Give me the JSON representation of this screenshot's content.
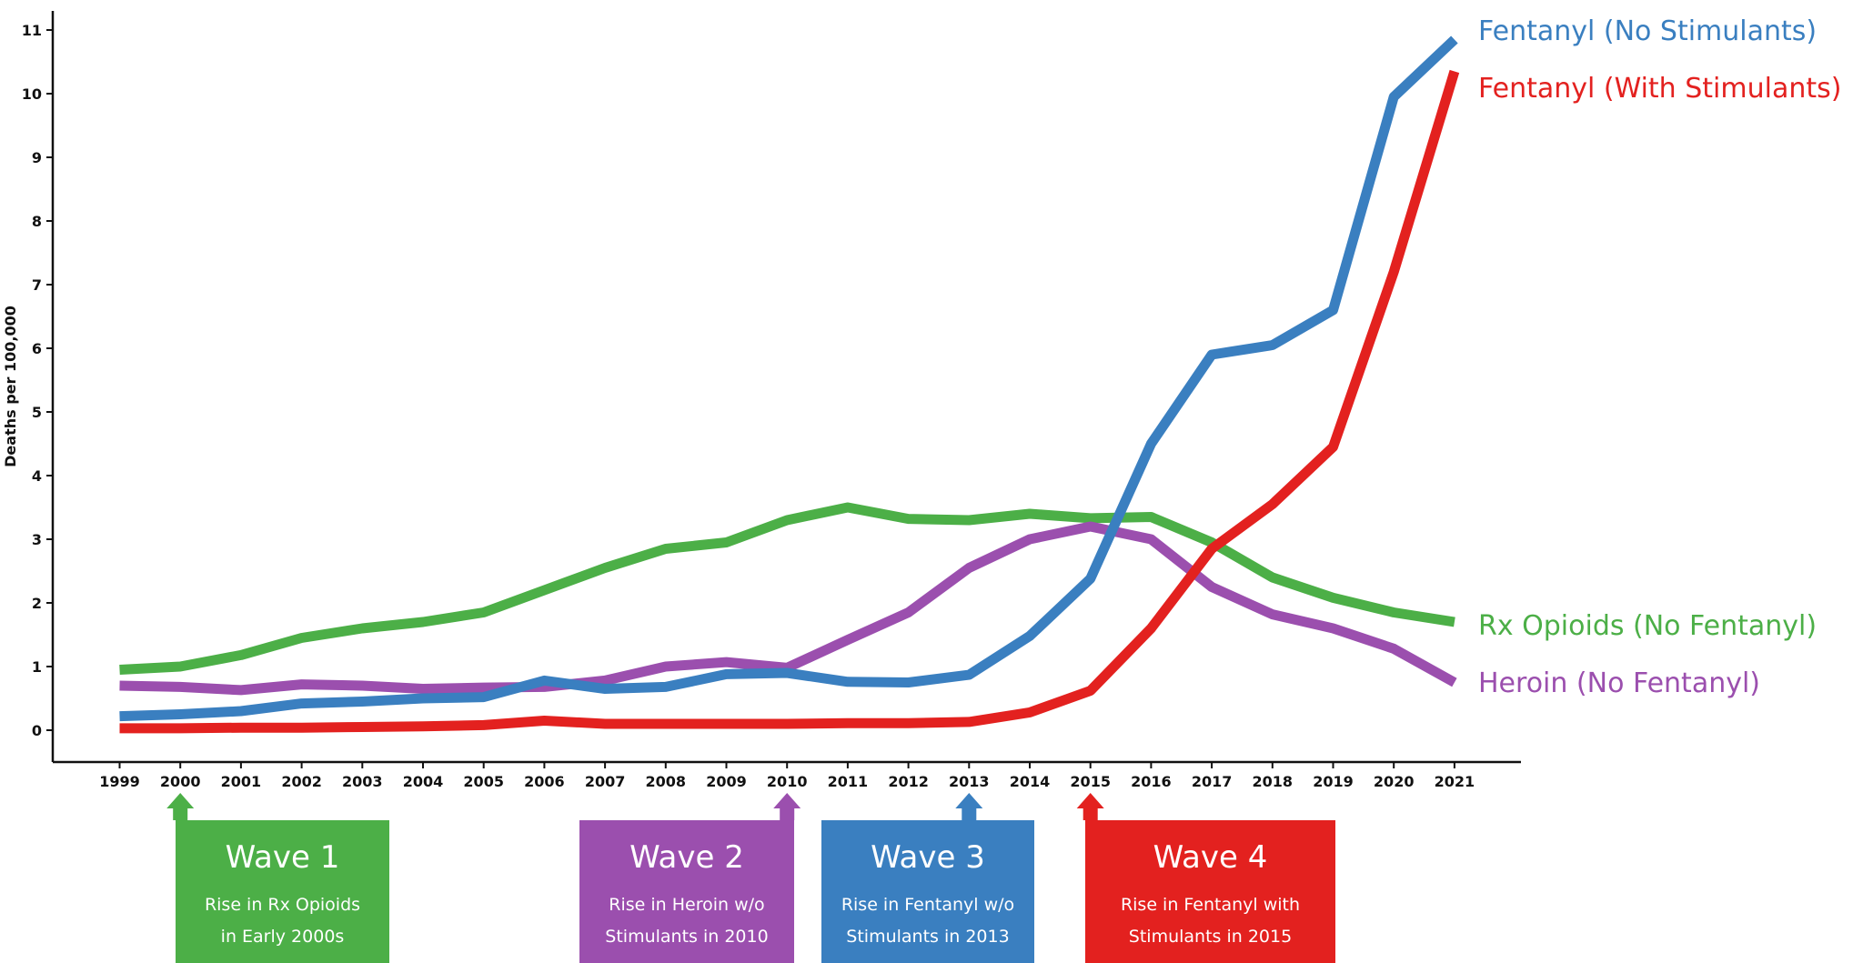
{
  "chart_data": {
    "type": "line",
    "title": "",
    "xlabel": "",
    "ylabel": "Deaths per 100,000",
    "ylim": [
      0,
      11
    ],
    "yticks": [
      "0",
      "1",
      "2",
      "3",
      "4",
      "5",
      "6",
      "7",
      "8",
      "9",
      "10",
      "11"
    ],
    "grid": false,
    "categories": [
      "1999",
      "2000",
      "2001",
      "2002",
      "2003",
      "2004",
      "2005",
      "2006",
      "2007",
      "2008",
      "2009",
      "2010",
      "2011",
      "2012",
      "2013",
      "2014",
      "2015",
      "2016",
      "2017",
      "2018",
      "2019",
      "2020",
      "2021"
    ],
    "series": [
      {
        "name": "Rx Opioids (No Fentanyl)",
        "color": "#4caf47",
        "values": [
          0.95,
          1.0,
          1.18,
          1.45,
          1.6,
          1.7,
          1.85,
          2.2,
          2.55,
          2.85,
          2.95,
          3.3,
          3.5,
          3.32,
          3.3,
          3.4,
          3.33,
          3.35,
          2.95,
          2.4,
          2.08,
          1.85,
          1.7
        ]
      },
      {
        "name": "Heroin (No Fentanyl)",
        "color": "#9b4fae",
        "values": [
          0.7,
          0.68,
          0.63,
          0.72,
          0.7,
          0.65,
          0.67,
          0.68,
          0.78,
          1.0,
          1.07,
          0.98,
          1.42,
          1.85,
          2.55,
          3.0,
          3.2,
          3.0,
          2.25,
          1.82,
          1.6,
          1.28,
          0.75
        ]
      },
      {
        "name": "Fentanyl (No Stimulants)",
        "color": "#3a7fc0",
        "values": [
          0.22,
          0.25,
          0.3,
          0.42,
          0.45,
          0.5,
          0.52,
          0.78,
          0.65,
          0.68,
          0.88,
          0.9,
          0.76,
          0.75,
          0.87,
          1.48,
          2.38,
          4.5,
          5.9,
          6.05,
          6.6,
          9.95,
          10.85
        ]
      },
      {
        "name": "Fentanyl (With Stimulants)",
        "color": "#e3211f",
        "values": [
          0.03,
          0.03,
          0.04,
          0.04,
          0.05,
          0.06,
          0.08,
          0.15,
          0.1,
          0.1,
          0.1,
          0.1,
          0.11,
          0.11,
          0.13,
          0.28,
          0.62,
          1.6,
          2.85,
          3.55,
          4.45,
          7.2,
          10.35
        ]
      }
    ],
    "waves": [
      {
        "title": "Wave 1",
        "line1": "Rise in Rx Opioids",
        "line2": "in Early 2000s",
        "year": "2000",
        "color": "#4caf47"
      },
      {
        "title": "Wave 2",
        "line1": "Rise in Heroin w/o",
        "line2": "Stimulants in 2010",
        "year": "2010",
        "color": "#9b4fae"
      },
      {
        "title": "Wave 3",
        "line1": "Rise in Fentanyl w/o",
        "line2": "Stimulants in 2013",
        "year": "2013",
        "color": "#3a7fc0"
      },
      {
        "title": "Wave 4",
        "line1": "Rise in Fentanyl with",
        "line2": "Stimulants in 2015",
        "year": "2015",
        "color": "#e3211f"
      }
    ]
  }
}
